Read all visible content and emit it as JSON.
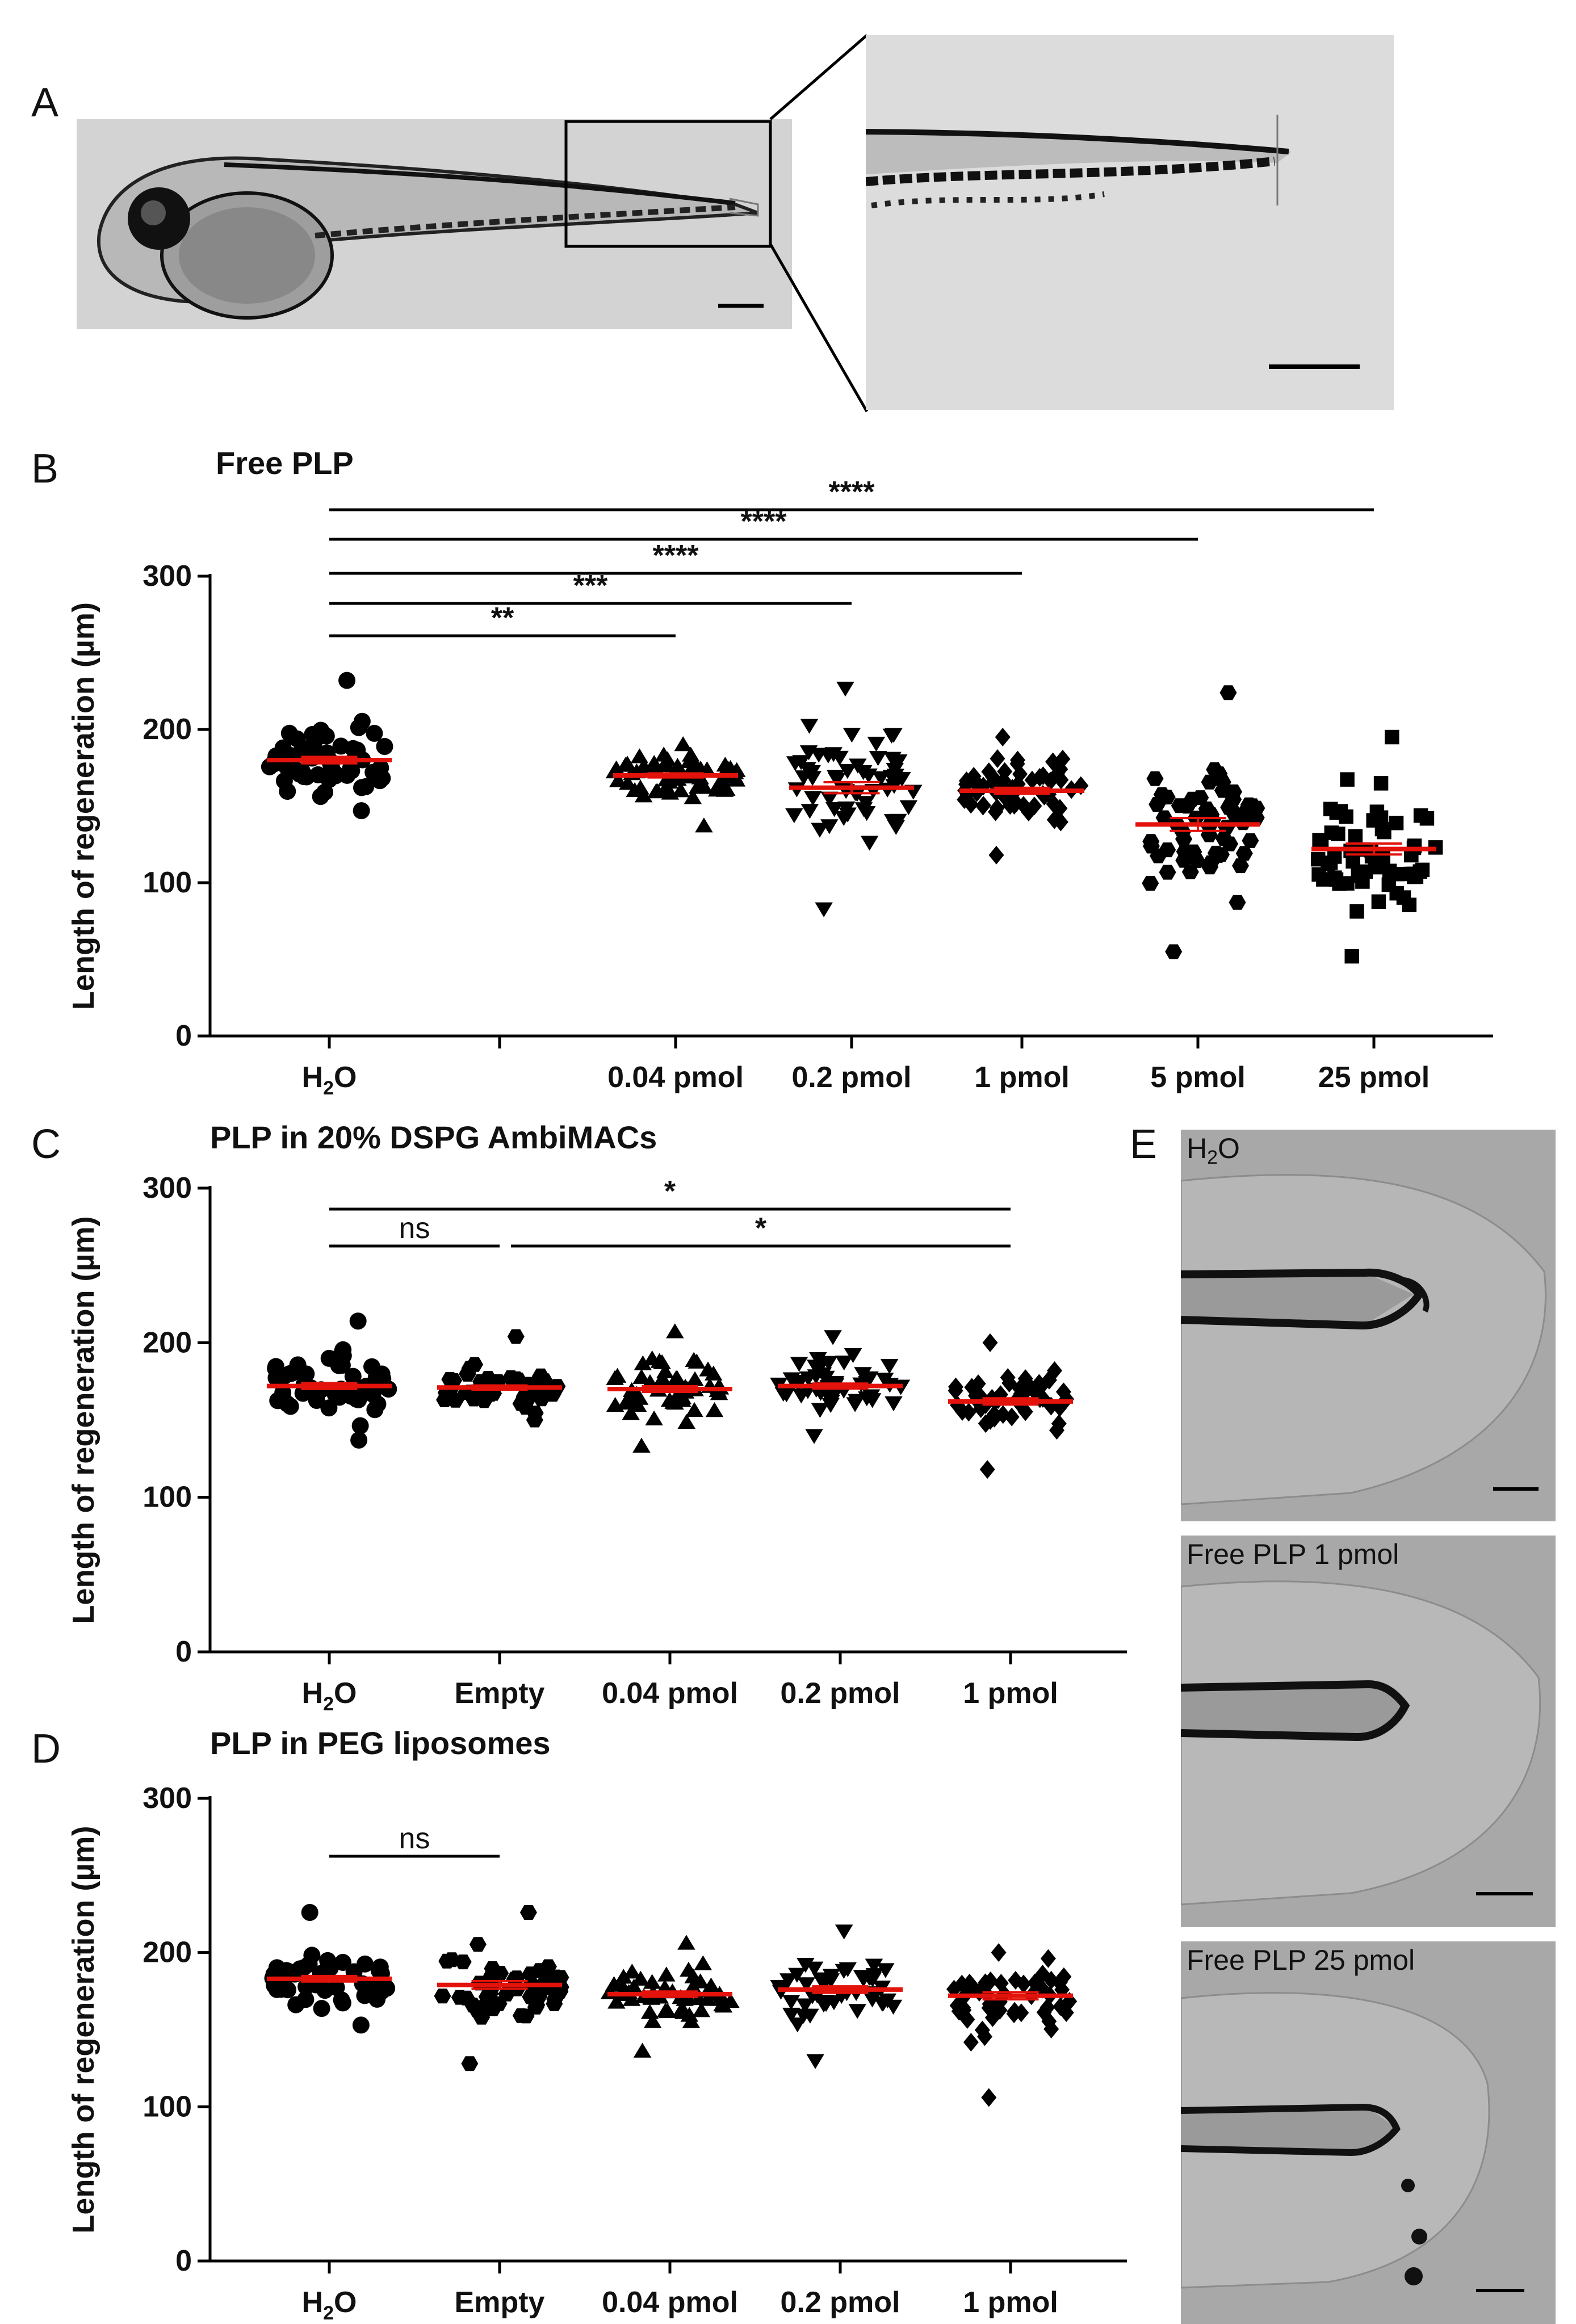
{
  "panel_labels": {
    "a": "A",
    "b": "B",
    "c": "C",
    "d": "D",
    "e": "E"
  },
  "panel_e_labels": [
    "H2O",
    "Free PLP 1 pmol",
    "Free PLP 25 pmol"
  ],
  "chart_data": [
    {
      "type": "scatter",
      "id": "B",
      "title": "Free PLP",
      "ylabel": "Length of regeneration (µm)",
      "xlabel": "",
      "ylim": [
        0,
        300
      ],
      "yticks": [
        0,
        100,
        200,
        300
      ],
      "categories": [
        "H2O",
        "",
        "0.04 pmol",
        "0.2 pmol",
        "1 pmol",
        "5 pmol",
        "25 pmol"
      ],
      "series": [
        {
          "name": "H2O",
          "marker": "circle",
          "mean": 180,
          "min": 147,
          "max": 232,
          "n": 60
        },
        {
          "name": "0.04 pmol",
          "marker": "triangle-up",
          "mean": 170,
          "min": 137,
          "max": 190,
          "n": 60
        },
        {
          "name": "0.2 pmol",
          "marker": "triangle-down",
          "mean": 162,
          "min": 83,
          "max": 227,
          "n": 60
        },
        {
          "name": "1 pmol",
          "marker": "diamond",
          "mean": 160,
          "min": 118,
          "max": 195,
          "n": 60
        },
        {
          "name": "5 pmol",
          "marker": "hexagon",
          "mean": 138,
          "min": 55,
          "max": 224,
          "n": 60
        },
        {
          "name": "25 pmol",
          "marker": "square",
          "mean": 122,
          "min": 52,
          "max": 195,
          "n": 60
        }
      ],
      "significance": [
        {
          "from": "H2O",
          "to": "0.04 pmol",
          "label": "**"
        },
        {
          "from": "H2O",
          "to": "0.2 pmol",
          "label": "***"
        },
        {
          "from": "H2O",
          "to": "1 pmol",
          "label": "****"
        },
        {
          "from": "H2O",
          "to": "5 pmol",
          "label": "****"
        },
        {
          "from": "H2O",
          "to": "25 pmol",
          "label": "****"
        }
      ]
    },
    {
      "type": "scatter",
      "id": "C",
      "title": "PLP in 20% DSPG AmbiMACs",
      "ylabel": "Length of regeneration (µm)",
      "xlabel": "",
      "ylim": [
        0,
        300
      ],
      "yticks": [
        0,
        100,
        200,
        300
      ],
      "categories": [
        "H2O",
        "Empty",
        "0.04 pmol",
        "0.2 pmol",
        "1 pmol"
      ],
      "series": [
        {
          "name": "H2O",
          "marker": "circle",
          "mean": 172,
          "min": 137,
          "max": 214,
          "n": 50
        },
        {
          "name": "Empty",
          "marker": "hexagon",
          "mean": 171,
          "min": 150,
          "max": 204,
          "n": 50
        },
        {
          "name": "0.04 pmol",
          "marker": "triangle-up",
          "mean": 170,
          "min": 133,
          "max": 207,
          "n": 50
        },
        {
          "name": "0.2 pmol",
          "marker": "triangle-down",
          "mean": 172,
          "min": 140,
          "max": 204,
          "n": 50
        },
        {
          "name": "1 pmol",
          "marker": "diamond",
          "mean": 162,
          "min": 118,
          "max": 200,
          "n": 50
        }
      ],
      "significance": [
        {
          "from": "H2O",
          "to": "Empty",
          "label": "ns"
        },
        {
          "from": "H2O",
          "to": "1 pmol",
          "label": "*"
        },
        {
          "from": "Empty",
          "to": "1 pmol",
          "label": "*"
        }
      ]
    },
    {
      "type": "scatter",
      "id": "D",
      "title": "PLP in PEG liposomes",
      "ylabel": "Length of regeneration (µm)",
      "xlabel": "",
      "ylim": [
        0,
        300
      ],
      "yticks": [
        0,
        100,
        200,
        300
      ],
      "categories": [
        "H2O",
        "Empty",
        "0.04 pmol",
        "0.2 pmol",
        "1 pmol"
      ],
      "series": [
        {
          "name": "H2O",
          "marker": "circle",
          "mean": 183,
          "min": 153,
          "max": 226,
          "n": 50
        },
        {
          "name": "Empty",
          "marker": "hexagon",
          "mean": 179,
          "min": 128,
          "max": 226,
          "n": 50
        },
        {
          "name": "0.04 pmol",
          "marker": "triangle-up",
          "mean": 173,
          "min": 136,
          "max": 206,
          "n": 50
        },
        {
          "name": "0.2 pmol",
          "marker": "triangle-down",
          "mean": 176,
          "min": 130,
          "max": 214,
          "n": 50
        },
        {
          "name": "1 pmol",
          "marker": "diamond",
          "mean": 172,
          "min": 106,
          "max": 200,
          "n": 50
        }
      ],
      "significance": [
        {
          "from": "H2O",
          "to": "Empty",
          "label": "ns"
        }
      ]
    }
  ],
  "colors": {
    "mean_bar": "#e3120b",
    "marker": "#000000",
    "axis": "#000000"
  }
}
